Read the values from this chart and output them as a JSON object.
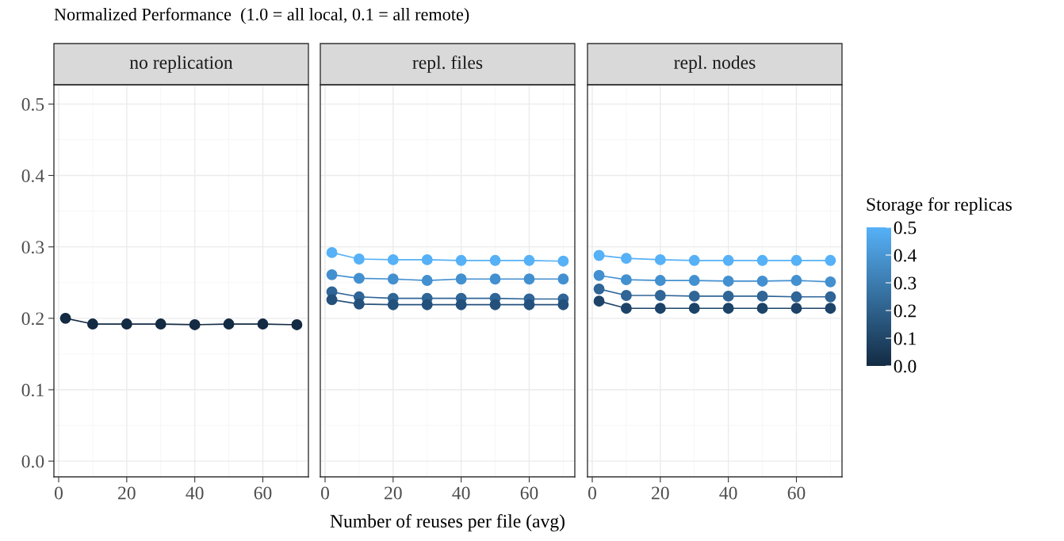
{
  "chart_data": [
    {
      "type": "line",
      "title": "no replication",
      "ylabel": "Normalized Performance  (1.0 = all local, 0.1 = all remote)",
      "x": [
        2,
        10,
        20,
        30,
        40,
        50,
        60,
        70
      ],
      "xlim": [
        -1.4,
        73.4
      ],
      "xticks": [
        0,
        20,
        40,
        60
      ],
      "ylim": [
        -0.022,
        0.527
      ],
      "yticks": [
        {
          "value": 0,
          "label": "0.0"
        },
        0.1,
        0.2,
        0.3,
        0.4,
        0.5
      ],
      "grid": true,
      "marker": "circle",
      "line_style": "solid",
      "series": [
        {
          "color": "#132b43",
          "values": [
            0.2,
            0.192,
            0.192,
            0.192,
            0.191,
            0.192,
            0.192,
            0.191
          ]
        }
      ]
    },
    {
      "type": "line",
      "title": "repl. files",
      "xlabel": "Number of reuses per file (avg)",
      "x": [
        2,
        10,
        20,
        30,
        40,
        50,
        60,
        70
      ],
      "xlim": [
        -1.4,
        73.4
      ],
      "xticks": [
        0,
        20,
        40,
        60
      ],
      "ylim": [
        -0.022,
        0.527
      ],
      "yticks": [
        0,
        0.1,
        0.2,
        0.3,
        0.4,
        0.5
      ],
      "grid": true,
      "marker": "circle",
      "line_style": "solid",
      "tick_labels": "x",
      "series": [
        {
          "color": "#56b1f7",
          "values": [
            0.292,
            0.283,
            0.282,
            0.282,
            0.281,
            0.281,
            0.281,
            0.28
          ]
        },
        {
          "color": "#4390d0",
          "values": [
            0.261,
            0.256,
            0.255,
            0.253,
            0.255,
            0.255,
            0.255,
            0.255
          ]
        },
        {
          "color": "#2f6597",
          "values": [
            0.237,
            0.23,
            0.228,
            0.228,
            0.228,
            0.228,
            0.227,
            0.227
          ]
        },
        {
          "color": "#24507c",
          "values": [
            0.226,
            0.22,
            0.219,
            0.219,
            0.219,
            0.219,
            0.219,
            0.219
          ]
        }
      ]
    },
    {
      "type": "line",
      "title": "repl. nodes",
      "x": [
        2,
        10,
        20,
        30,
        40,
        50,
        60,
        70
      ],
      "xlim": [
        -1.4,
        73.4
      ],
      "xticks": [
        0,
        20,
        40,
        60
      ],
      "ylim": [
        -0.022,
        0.527
      ],
      "yticks": [
        0,
        0.1,
        0.2,
        0.3,
        0.4,
        0.5
      ],
      "grid": true,
      "marker": "circle",
      "line_style": "solid",
      "tick_labels": "x",
      "clabel": "Storage for replicas",
      "clim": [
        0.0,
        0.5
      ],
      "cticks": [
        {
          "value": 0,
          "label": "0.0"
        },
        0.1,
        0.2,
        0.3,
        0.4,
        0.5
      ],
      "series": [
        {
          "color": "#56b1f7",
          "values": [
            0.288,
            0.284,
            0.282,
            0.281,
            0.281,
            0.281,
            0.281,
            0.281
          ]
        },
        {
          "color": "#4390d0",
          "values": [
            0.26,
            0.254,
            0.253,
            0.253,
            0.252,
            0.252,
            0.253,
            0.251
          ]
        },
        {
          "color": "#2f6597",
          "values": [
            0.241,
            0.232,
            0.232,
            0.231,
            0.231,
            0.231,
            0.23,
            0.23
          ]
        },
        {
          "color": "#1d4468",
          "values": [
            0.224,
            0.214,
            0.214,
            0.214,
            0.214,
            0.214,
            0.214,
            0.214
          ]
        }
      ]
    }
  ]
}
